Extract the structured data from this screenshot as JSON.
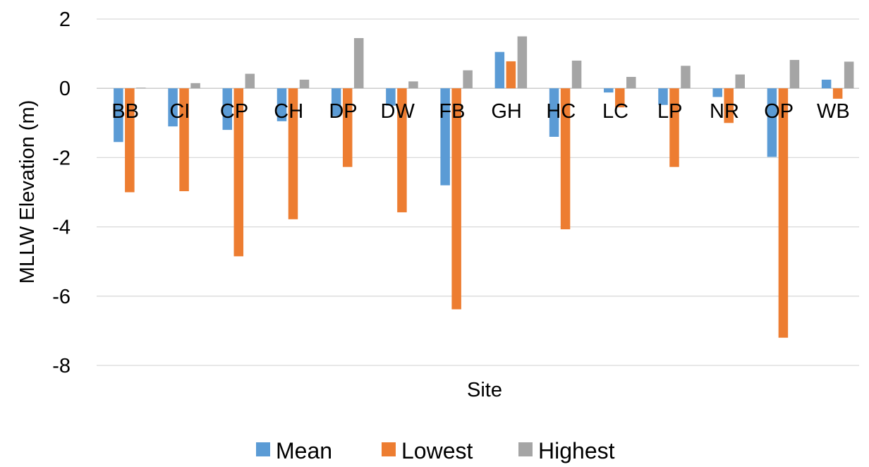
{
  "chart_data": {
    "type": "bar",
    "title": "",
    "xlabel": "Site",
    "ylabel": "MLLW Elevation (m)",
    "ylim": [
      -8,
      2
    ],
    "yticks": [
      2,
      0,
      -2,
      -4,
      -6,
      -8
    ],
    "grid": true,
    "legend_position": "bottom",
    "categories": [
      "BB",
      "CI",
      "CP",
      "CH",
      "DP",
      "DW",
      "FB",
      "GH",
      "HC",
      "LC",
      "LP",
      "NR",
      "OP",
      "WB"
    ],
    "series": [
      {
        "name": "Mean",
        "color": "#5b9bd5",
        "values": [
          -1.55,
          -1.1,
          -1.2,
          -0.95,
          -0.8,
          -0.5,
          -2.8,
          1.05,
          -1.4,
          -0.12,
          -0.48,
          -0.25,
          -1.98,
          0.25
        ]
      },
      {
        "name": "Lowest",
        "color": "#ed7d31",
        "values": [
          -3.0,
          -2.97,
          -4.85,
          -3.78,
          -2.27,
          -3.58,
          -6.38,
          0.78,
          -4.07,
          -0.55,
          -2.27,
          -1.0,
          -7.2,
          -0.3
        ]
      },
      {
        "name": "Highest",
        "color": "#a5a5a5",
        "values": [
          0.02,
          0.15,
          0.42,
          0.25,
          1.45,
          0.2,
          0.52,
          1.5,
          0.8,
          0.33,
          0.65,
          0.4,
          0.82,
          0.77
        ]
      }
    ]
  }
}
